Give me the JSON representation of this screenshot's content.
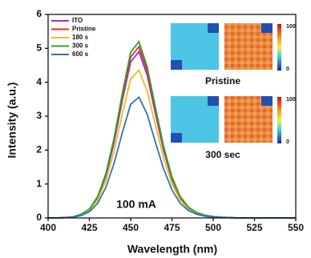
{
  "chart_data": {
    "type": "line",
    "x_label": "Wavelength (nm)",
    "y_label": "Intensity (a.u.)",
    "annotation": "100 mA",
    "x": [
      400,
      405,
      410,
      415,
      420,
      425,
      430,
      435,
      440,
      445,
      450,
      455,
      460,
      465,
      470,
      475,
      480,
      485,
      490,
      495,
      500,
      505,
      510,
      515,
      520,
      525,
      530,
      535,
      540,
      545,
      550
    ],
    "series": [
      {
        "name": "ITO",
        "color": "#9b30d0",
        "values": [
          0,
          0,
          0.01,
          0.03,
          0.1,
          0.25,
          0.59,
          1.24,
          2.23,
          3.47,
          4.6,
          4.9,
          4.21,
          3.07,
          1.98,
          1.14,
          0.59,
          0.3,
          0.15,
          0.07,
          0.04,
          0.02,
          0.01,
          0,
          0,
          0,
          0,
          0,
          0,
          0,
          0
        ]
      },
      {
        "name": "Pristine",
        "color": "#e03020",
        "values": [
          0,
          0,
          0.01,
          0.03,
          0.1,
          0.26,
          0.61,
          1.28,
          2.3,
          3.57,
          4.74,
          5.05,
          4.34,
          3.16,
          2.04,
          1.17,
          0.61,
          0.31,
          0.15,
          0.08,
          0.04,
          0.02,
          0.01,
          0,
          0,
          0,
          0,
          0,
          0,
          0,
          0
        ]
      },
      {
        "name": "180 s",
        "color": "#e0c020",
        "values": [
          0,
          0,
          0.01,
          0.03,
          0.09,
          0.22,
          0.53,
          1.1,
          1.98,
          3.08,
          4.09,
          4.36,
          3.74,
          2.73,
          1.76,
          1.01,
          0.53,
          0.26,
          0.13,
          0.07,
          0.04,
          0.02,
          0.01,
          0,
          0,
          0,
          0,
          0,
          0,
          0,
          0
        ]
      },
      {
        "name": "300 s",
        "color": "#30a030",
        "values": [
          0,
          0,
          0.01,
          0.03,
          0.11,
          0.26,
          0.63,
          1.31,
          2.36,
          3.68,
          4.88,
          5.2,
          4.46,
          3.26,
          2.1,
          1.21,
          0.63,
          0.32,
          0.16,
          0.08,
          0.04,
          0.02,
          0.01,
          0,
          0,
          0,
          0,
          0,
          0,
          0,
          0
        ]
      },
      {
        "name": "600 s",
        "color": "#3070c0",
        "values": [
          0,
          0,
          0.01,
          0.02,
          0.07,
          0.18,
          0.43,
          0.9,
          1.62,
          2.52,
          3.35,
          3.56,
          3.06,
          2.23,
          1.44,
          0.83,
          0.43,
          0.22,
          0.11,
          0.05,
          0.03,
          0.01,
          0.01,
          0,
          0,
          0,
          0,
          0,
          0,
          0,
          0
        ]
      }
    ],
    "xlim": [
      400,
      550
    ],
    "xticks": [
      400,
      425,
      450,
      475,
      500,
      525,
      550
    ],
    "ylim": [
      0,
      6
    ],
    "yticks": [
      0,
      1,
      2,
      3,
      4,
      5,
      6
    ],
    "legend": "upper left",
    "insets": [
      {
        "caption": "Pristine",
        "colorbar_ticks": [
          100,
          0
        ]
      },
      {
        "caption": "300 sec",
        "colorbar_ticks": [
          100,
          0
        ]
      }
    ]
  }
}
